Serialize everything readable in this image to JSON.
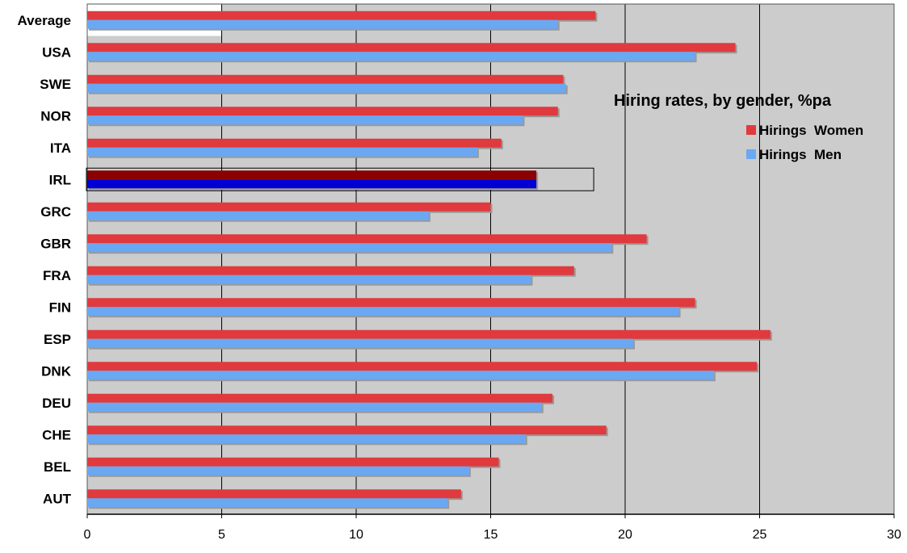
{
  "chart_data": {
    "type": "bar",
    "orientation": "horizontal",
    "title": "Hiring rates, by gender, %pa",
    "categories": [
      "Average",
      "USA",
      "SWE",
      "NOR",
      "ITA",
      "IRL",
      "GRC",
      "GBR",
      "FRA",
      "FIN",
      "ESP",
      "DNK",
      "DEU",
      "CHE",
      "BEL",
      "AUT"
    ],
    "highlighted_category": "IRL",
    "series": [
      {
        "name": "Hirings  Women",
        "color": "#e03a3e",
        "highlight_color": "#8b0000",
        "values": [
          18.9,
          24.1,
          17.7,
          17.5,
          15.4,
          16.7,
          15.0,
          20.8,
          18.1,
          22.6,
          25.4,
          24.9,
          17.3,
          19.3,
          15.3,
          13.9
        ]
      },
      {
        "name": "Hirings  Men",
        "color": "#6aa8f2",
        "highlight_color": "#0000d4",
        "values": [
          17.5,
          22.6,
          17.8,
          16.2,
          14.5,
          16.7,
          12.7,
          19.5,
          16.5,
          22.0,
          20.3,
          23.3,
          16.9,
          16.3,
          14.2,
          13.4
        ]
      }
    ],
    "xlim": [
      0,
      30
    ],
    "xticks": [
      "0",
      "5",
      "10",
      "15",
      "20",
      "25",
      "30"
    ],
    "xlabel": "",
    "ylabel": "",
    "grid": "vertical",
    "legend_placement": "upper-right",
    "plot_background": "#cccccc",
    "first_band_background": "#ffffff"
  }
}
